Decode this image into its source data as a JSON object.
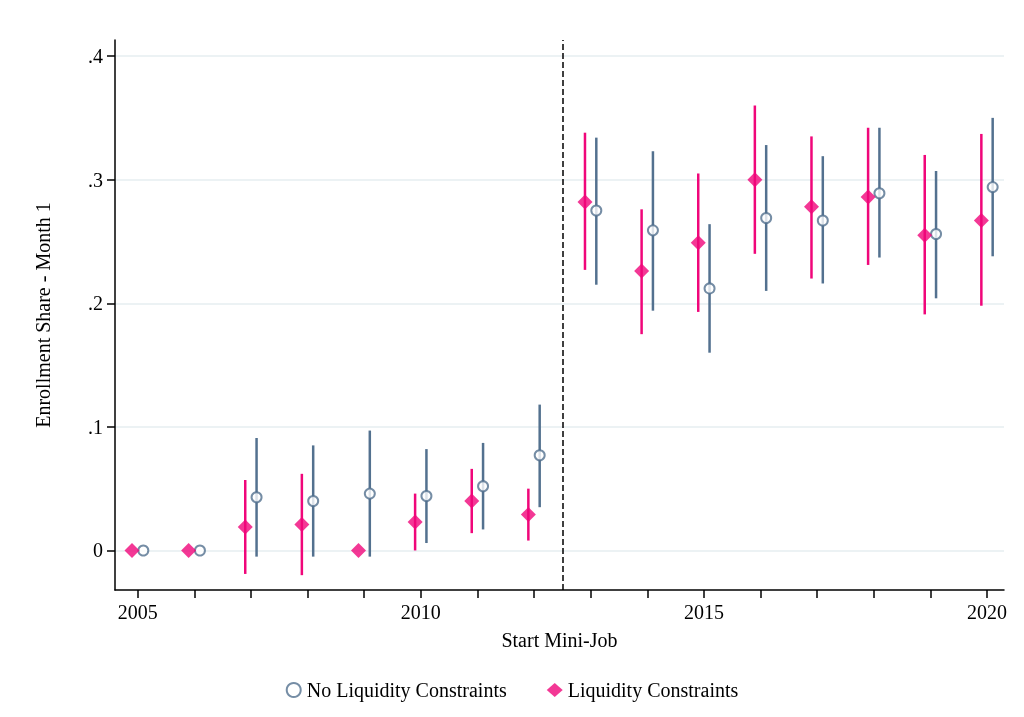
{
  "chart_data": {
    "type": "scatter",
    "xlabel": "Start Mini-Job",
    "ylabel": "Enrollment Share - Month 1",
    "xlim": [
      2004.6,
      2020.3
    ],
    "xticks": [
      {
        "value": 2005,
        "label": "2005"
      },
      {
        "value": 2006,
        "label": null
      },
      {
        "value": 2007,
        "label": null
      },
      {
        "value": 2008,
        "label": null
      },
      {
        "value": 2009,
        "label": null
      },
      {
        "value": 2010,
        "label": "2010"
      },
      {
        "value": 2011,
        "label": null
      },
      {
        "value": 2012,
        "label": null
      },
      {
        "value": 2013,
        "label": null
      },
      {
        "value": 2014,
        "label": null
      },
      {
        "value": 2015,
        "label": "2015"
      },
      {
        "value": 2016,
        "label": null
      },
      {
        "value": 2017,
        "label": null
      },
      {
        "value": 2018,
        "label": null
      },
      {
        "value": 2019,
        "label": null
      },
      {
        "value": 2020,
        "label": "2020"
      }
    ],
    "ylim": [
      -0.032,
      0.413
    ],
    "yticks": [
      0,
      {
        "value": 0.1,
        "label": ".1"
      },
      {
        "value": 0.2,
        "label": ".2"
      },
      {
        "value": 0.3,
        "label": ".3"
      },
      {
        "value": 0.4,
        "label": ".4"
      }
    ],
    "grid": "y",
    "legend": "bottom",
    "ref_lines": [
      {
        "axis": "x",
        "value": 2012.5,
        "line_style": "dashed",
        "color": "#000000"
      }
    ],
    "series": [
      {
        "name": "No Liquidity Constraints",
        "color": "#53718f",
        "marker": "circle",
        "x": [
          2005.1,
          2006.1,
          2007.1,
          2008.1,
          2009.1,
          2010.1,
          2011.1,
          2012.1,
          2013.1,
          2014.1,
          2015.1,
          2016.1,
          2017.1,
          2018.1,
          2019.1,
          2020.1
        ],
        "values": [
          0,
          0,
          0.043,
          0.04,
          0.046,
          0.044,
          0.052,
          0.077,
          0.275,
          0.259,
          0.212,
          0.269,
          0.267,
          0.289,
          0.256,
          0.294
        ],
        "errors": [
          null,
          null,
          [
            -0.005,
            0.091
          ],
          [
            -0.005,
            0.085
          ],
          [
            -0.005,
            0.097
          ],
          [
            0.006,
            0.082
          ],
          [
            0.017,
            0.087
          ],
          [
            0.035,
            0.118
          ],
          [
            0.215,
            0.334
          ],
          [
            0.194,
            0.323
          ],
          [
            0.16,
            0.264
          ],
          [
            0.21,
            0.328
          ],
          [
            0.216,
            0.319
          ],
          [
            0.237,
            0.342
          ],
          [
            0.204,
            0.307
          ],
          [
            0.238,
            0.35
          ]
        ]
      },
      {
        "name": "Liquidity Constraints",
        "color": "#f0067a",
        "marker": "diamond",
        "x": [
          2004.9,
          2005.9,
          2006.9,
          2007.9,
          2008.9,
          2009.9,
          2010.9,
          2011.9,
          2012.9,
          2013.9,
          2014.9,
          2015.9,
          2016.9,
          2017.9,
          2018.9,
          2019.9
        ],
        "values": [
          0,
          0,
          0.019,
          0.021,
          0,
          0.023,
          0.04,
          0.029,
          0.282,
          0.226,
          0.249,
          0.3,
          0.278,
          0.286,
          0.255,
          0.267
        ],
        "errors": [
          null,
          null,
          [
            -0.019,
            0.057
          ],
          [
            -0.02,
            0.062
          ],
          null,
          [
            0.0,
            0.046
          ],
          [
            0.014,
            0.066
          ],
          [
            0.008,
            0.05
          ],
          [
            0.227,
            0.338
          ],
          [
            0.175,
            0.276
          ],
          [
            0.193,
            0.305
          ],
          [
            0.24,
            0.36
          ],
          [
            0.22,
            0.335
          ],
          [
            0.231,
            0.342
          ],
          [
            0.191,
            0.32
          ],
          [
            0.198,
            0.337
          ]
        ]
      }
    ]
  }
}
